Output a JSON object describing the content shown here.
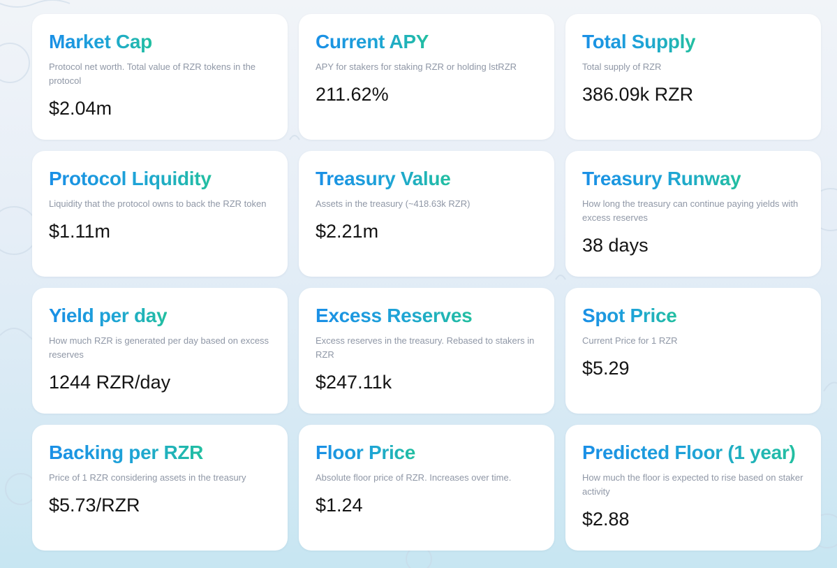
{
  "colors": {
    "title_gradient_start": "#1a8fe6",
    "title_gradient_end": "#22bfa0",
    "description": "#8f97a6",
    "value": "#141414",
    "card_background": "#ffffff"
  },
  "cards": [
    {
      "title": "Market Cap",
      "description": "Protocol net worth. Total value of RZR tokens in the protocol",
      "value": "$2.04m"
    },
    {
      "title": "Current APY",
      "description": "APY for stakers for staking RZR or holding lstRZR",
      "value": "211.62%"
    },
    {
      "title": "Total Supply",
      "description": "Total supply of RZR",
      "value": "386.09k RZR"
    },
    {
      "title": "Protocol Liquidity",
      "description": "Liquidity that the protocol owns to back the RZR token",
      "value": "$1.11m"
    },
    {
      "title": "Treasury Value",
      "description": "Assets in the treasury (~418.63k RZR)",
      "value": "$2.21m"
    },
    {
      "title": "Treasury Runway",
      "description": "How long the treasury can continue paying yields with excess reserves",
      "value": "38 days"
    },
    {
      "title": "Yield per day",
      "description": "How much RZR is generated per day based on excess reserves",
      "value": "1244 RZR/day"
    },
    {
      "title": "Excess Reserves",
      "description": "Excess reserves in the treasury. Rebased to stakers in RZR",
      "value": "$247.11k"
    },
    {
      "title": "Spot Price",
      "description": "Current Price for 1 RZR",
      "value": "$5.29"
    },
    {
      "title": "Backing per RZR",
      "description": "Price of 1 RZR considering assets in the treasury",
      "value": "$5.73/RZR"
    },
    {
      "title": "Floor Price",
      "description": "Absolute floor price of RZR. Increases over time.",
      "value": "$1.24"
    },
    {
      "title": "Predicted Floor (1 year)",
      "description": "How much the floor is expected to rise based on staker activity",
      "value": "$2.88"
    }
  ]
}
